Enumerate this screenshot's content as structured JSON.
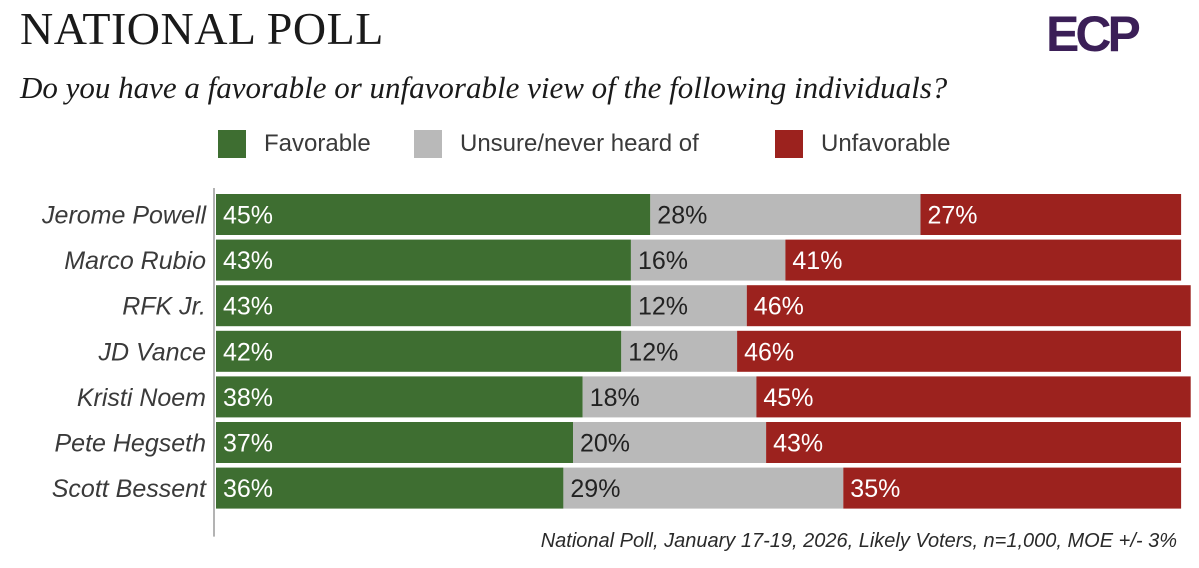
{
  "header": {
    "title": "NATIONAL POLL",
    "question": "Do you have a favorable or unfavorable view of the following individuals?",
    "logo_text": "ECP"
  },
  "footer": {
    "source": "National Poll, January 17-19, 2026, Likely Voters, n=1,000, MOE +/- 3%"
  },
  "colors": {
    "favorable": "#3e6e31",
    "unsure": "#b9b9b9",
    "unfavorable": "#9c221e",
    "logo": "#3b1f57"
  },
  "chart_data": {
    "type": "bar",
    "orientation": "horizontal",
    "stacked": true,
    "categories": [
      "Jerome Powell",
      "Marco Rubio",
      "RFK Jr.",
      "JD Vance",
      "Kristi Noem",
      "Pete Hegseth",
      "Scott Bessent"
    ],
    "series": [
      {
        "name": "Favorable",
        "values": [
          45,
          43,
          43,
          42,
          38,
          37,
          36
        ]
      },
      {
        "name": "Unsure/never heard of",
        "values": [
          28,
          16,
          12,
          12,
          18,
          20,
          29
        ]
      },
      {
        "name": "Unfavorable",
        "values": [
          27,
          41,
          46,
          46,
          45,
          43,
          35
        ]
      }
    ],
    "value_suffix": "%",
    "xlim": [
      0,
      100
    ],
    "legend_position": "top",
    "grid": false
  }
}
